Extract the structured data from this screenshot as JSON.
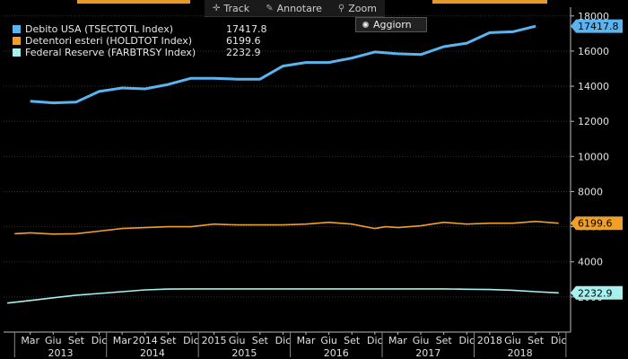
{
  "toolbar": {
    "track_label": "Track",
    "annotate_label": "Annotare",
    "zoom_label": "Zoom",
    "update_label": "Aggiorn"
  },
  "chart_data": {
    "type": "line",
    "ylim": [
      0,
      18500
    ],
    "yticks": [
      2000,
      4000,
      6000,
      8000,
      10000,
      12000,
      14000,
      16000,
      18000
    ],
    "xlim": [
      2012.88,
      2019.05
    ],
    "month_ticks": [
      {
        "label": "Mar",
        "x": 2013.17
      },
      {
        "label": "Giu",
        "x": 2013.42
      },
      {
        "label": "Set",
        "x": 2013.67
      },
      {
        "label": "Dic",
        "x": 2013.92
      },
      {
        "label": "Mar",
        "x": 2014.17
      },
      {
        "label": "2014",
        "x": 2014.42
      },
      {
        "label": "Set",
        "x": 2014.67
      },
      {
        "label": "Dic",
        "x": 2014.92
      },
      {
        "label": "2015",
        "x": 2015.17
      },
      {
        "label": "Giu",
        "x": 2015.42
      },
      {
        "label": "Set",
        "x": 2015.67
      },
      {
        "label": "Dic",
        "x": 2015.92
      },
      {
        "label": "Mar",
        "x": 2016.17
      },
      {
        "label": "Giu",
        "x": 2016.42
      },
      {
        "label": "Set",
        "x": 2016.67
      },
      {
        "label": "Dic",
        "x": 2016.92
      },
      {
        "label": "Mar",
        "x": 2017.17
      },
      {
        "label": "Giu",
        "x": 2017.42
      },
      {
        "label": "Set",
        "x": 2017.67
      },
      {
        "label": "Dic",
        "x": 2017.92
      },
      {
        "label": "2018",
        "x": 2018.17
      },
      {
        "label": "Giu",
        "x": 2018.42
      },
      {
        "label": "Set",
        "x": 2018.67
      },
      {
        "label": "Dic",
        "x": 2018.92
      }
    ],
    "year_labels": [
      {
        "label": "2013",
        "x": 2013.5
      },
      {
        "label": "2014",
        "x": 2014.5
      },
      {
        "label": "2015",
        "x": 2015.5
      },
      {
        "label": "2016",
        "x": 2016.5
      },
      {
        "label": "2017",
        "x": 2017.5
      },
      {
        "label": "2018",
        "x": 2018.5
      }
    ],
    "series": [
      {
        "name": "Debito USA (TSECTOTL Index)",
        "last_value": "17417.8",
        "color": "#5ab4f0",
        "points": [
          [
            2013.17,
            13150
          ],
          [
            2013.42,
            13050
          ],
          [
            2013.67,
            13100
          ],
          [
            2013.92,
            13700
          ],
          [
            2014.17,
            13900
          ],
          [
            2014.42,
            13850
          ],
          [
            2014.67,
            14100
          ],
          [
            2014.92,
            14450
          ],
          [
            2015.17,
            14450
          ],
          [
            2015.42,
            14400
          ],
          [
            2015.67,
            14400
          ],
          [
            2015.92,
            15150
          ],
          [
            2016.17,
            15350
          ],
          [
            2016.42,
            15350
          ],
          [
            2016.67,
            15600
          ],
          [
            2016.92,
            15950
          ],
          [
            2017.17,
            15850
          ],
          [
            2017.42,
            15800
          ],
          [
            2017.67,
            16250
          ],
          [
            2017.92,
            16450
          ],
          [
            2018.17,
            17050
          ],
          [
            2018.42,
            17100
          ],
          [
            2018.67,
            17417.8
          ]
        ]
      },
      {
        "name": "Detentori esteri (HOLDTOT Index)",
        "last_value": "6199.6",
        "color": "#f0a028",
        "points": [
          [
            2013.0,
            5600
          ],
          [
            2013.17,
            5650
          ],
          [
            2013.42,
            5580
          ],
          [
            2013.67,
            5600
          ],
          [
            2013.92,
            5750
          ],
          [
            2014.17,
            5900
          ],
          [
            2014.42,
            5950
          ],
          [
            2014.67,
            6000
          ],
          [
            2014.92,
            6000
          ],
          [
            2015.17,
            6150
          ],
          [
            2015.42,
            6100
          ],
          [
            2015.67,
            6100
          ],
          [
            2015.92,
            6100
          ],
          [
            2016.17,
            6150
          ],
          [
            2016.42,
            6250
          ],
          [
            2016.67,
            6150
          ],
          [
            2016.92,
            5900
          ],
          [
            2017.04,
            6000
          ],
          [
            2017.17,
            5950
          ],
          [
            2017.42,
            6050
          ],
          [
            2017.67,
            6250
          ],
          [
            2017.92,
            6150
          ],
          [
            2018.17,
            6200
          ],
          [
            2018.42,
            6200
          ],
          [
            2018.67,
            6300
          ],
          [
            2018.92,
            6199.6
          ]
        ]
      },
      {
        "name": "Federal Reserve (FARBTRSY Index)",
        "last_value": "2232.9",
        "color": "#a8f0ee",
        "points": [
          [
            2012.92,
            1650
          ],
          [
            2013.17,
            1800
          ],
          [
            2013.42,
            1950
          ],
          [
            2013.67,
            2100
          ],
          [
            2013.92,
            2200
          ],
          [
            2014.17,
            2300
          ],
          [
            2014.42,
            2400
          ],
          [
            2014.67,
            2450
          ],
          [
            2014.92,
            2460
          ],
          [
            2015.17,
            2460
          ],
          [
            2015.42,
            2460
          ],
          [
            2015.67,
            2460
          ],
          [
            2015.92,
            2460
          ],
          [
            2016.17,
            2460
          ],
          [
            2016.42,
            2460
          ],
          [
            2016.67,
            2460
          ],
          [
            2016.92,
            2460
          ],
          [
            2017.17,
            2460
          ],
          [
            2017.42,
            2460
          ],
          [
            2017.67,
            2460
          ],
          [
            2017.92,
            2440
          ],
          [
            2018.17,
            2420
          ],
          [
            2018.42,
            2380
          ],
          [
            2018.67,
            2300
          ],
          [
            2018.92,
            2232.9
          ]
        ]
      }
    ]
  }
}
